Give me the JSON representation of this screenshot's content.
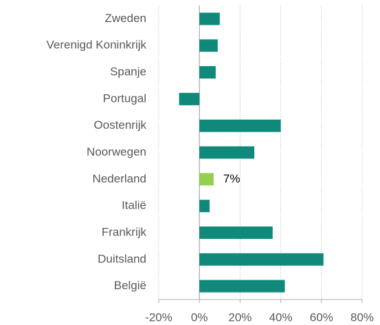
{
  "chart_data": {
    "type": "hbar",
    "categories": [
      "Zweden",
      "Verenigd Koninkrijk",
      "Spanje",
      "Portugal",
      "Oostenrijk",
      "Noorwegen",
      "Nederland",
      "Italië",
      "Frankrijk",
      "Duitsland",
      "België"
    ],
    "values": [
      10,
      9,
      8,
      -10,
      40,
      27,
      7,
      5,
      36,
      61,
      42
    ],
    "value_labels": [
      null,
      null,
      null,
      null,
      null,
      null,
      "7%",
      null,
      null,
      null,
      null
    ],
    "colors": [
      "#10897b",
      "#10897b",
      "#10897b",
      "#10897b",
      "#10897b",
      "#10897b",
      "#92d050",
      "#10897b",
      "#10897b",
      "#10897b",
      "#10897b"
    ],
    "xlim": [
      -20,
      80
    ],
    "xticks": [
      {
        "value": -20,
        "label": "-20%"
      },
      {
        "value": 0,
        "label": "0%"
      },
      {
        "value": 20,
        "label": "20%"
      },
      {
        "value": 40,
        "label": "40%"
      },
      {
        "value": 60,
        "label": "60%"
      },
      {
        "value": 80,
        "label": "80%"
      }
    ],
    "grid": true
  }
}
